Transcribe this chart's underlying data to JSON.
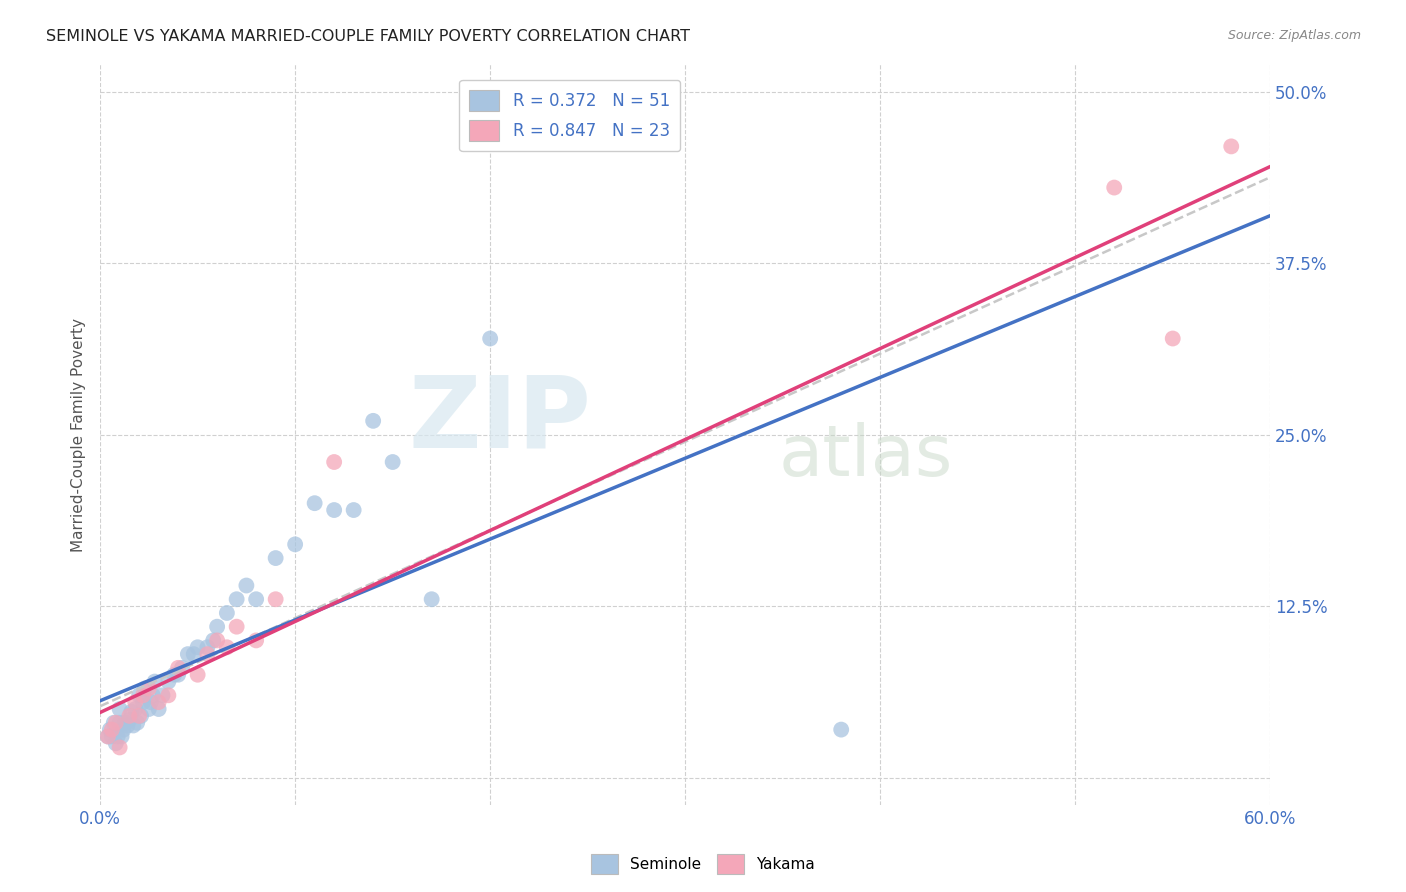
{
  "title": "SEMINOLE VS YAKAMA MARRIED-COUPLE FAMILY POVERTY CORRELATION CHART",
  "source": "Source: ZipAtlas.com",
  "ylabel": "Married-Couple Family Poverty",
  "xlim": [
    0.0,
    0.6
  ],
  "ylim": [
    -0.02,
    0.52
  ],
  "xticks": [
    0.0,
    0.1,
    0.2,
    0.3,
    0.4,
    0.5,
    0.6
  ],
  "xticklabels": [
    "0.0%",
    "",
    "",
    "",
    "",
    "",
    "60.0%"
  ],
  "ytick_positions": [
    0.0,
    0.125,
    0.25,
    0.375,
    0.5
  ],
  "ytick_labels": [
    "",
    "12.5%",
    "25.0%",
    "37.5%",
    "50.0%"
  ],
  "watermark_zip": "ZIP",
  "watermark_atlas": "atlas",
  "legend_r_seminole": "R = 0.372",
  "legend_n_seminole": "N = 51",
  "legend_r_yakama": "R = 0.847",
  "legend_n_yakama": "N = 23",
  "color_seminole": "#a8c4e0",
  "color_yakama": "#f4a7b9",
  "color_seminole_line": "#4472c4",
  "color_yakama_line": "#e0407a",
  "color_trend_line": "#c8c8c8",
  "background_color": "#ffffff",
  "grid_color": "#d0d0d0",
  "seminole_x": [
    0.004,
    0.005,
    0.006,
    0.007,
    0.008,
    0.009,
    0.01,
    0.01,
    0.011,
    0.012,
    0.013,
    0.014,
    0.015,
    0.016,
    0.017,
    0.018,
    0.019,
    0.02,
    0.021,
    0.022,
    0.023,
    0.025,
    0.026,
    0.027,
    0.028,
    0.03,
    0.032,
    0.035,
    0.038,
    0.04,
    0.042,
    0.045,
    0.048,
    0.05,
    0.055,
    0.058,
    0.06,
    0.065,
    0.07,
    0.075,
    0.08,
    0.09,
    0.1,
    0.11,
    0.12,
    0.13,
    0.14,
    0.15,
    0.17,
    0.2,
    0.38
  ],
  "seminole_y": [
    0.03,
    0.035,
    0.03,
    0.04,
    0.025,
    0.03,
    0.04,
    0.05,
    0.03,
    0.035,
    0.04,
    0.038,
    0.042,
    0.048,
    0.038,
    0.05,
    0.04,
    0.06,
    0.045,
    0.055,
    0.065,
    0.05,
    0.055,
    0.06,
    0.07,
    0.05,
    0.06,
    0.07,
    0.075,
    0.075,
    0.08,
    0.09,
    0.09,
    0.095,
    0.095,
    0.1,
    0.11,
    0.12,
    0.13,
    0.14,
    0.13,
    0.16,
    0.17,
    0.2,
    0.195,
    0.195,
    0.26,
    0.23,
    0.13,
    0.32,
    0.035
  ],
  "yakama_x": [
    0.004,
    0.006,
    0.008,
    0.01,
    0.015,
    0.018,
    0.02,
    0.022,
    0.025,
    0.03,
    0.035,
    0.04,
    0.05,
    0.055,
    0.06,
    0.065,
    0.07,
    0.08,
    0.09,
    0.12,
    0.52,
    0.55,
    0.58
  ],
  "yakama_y": [
    0.03,
    0.035,
    0.04,
    0.022,
    0.045,
    0.055,
    0.045,
    0.06,
    0.065,
    0.055,
    0.06,
    0.08,
    0.075,
    0.09,
    0.1,
    0.095,
    0.11,
    0.1,
    0.13,
    0.23,
    0.43,
    0.32,
    0.46
  ]
}
